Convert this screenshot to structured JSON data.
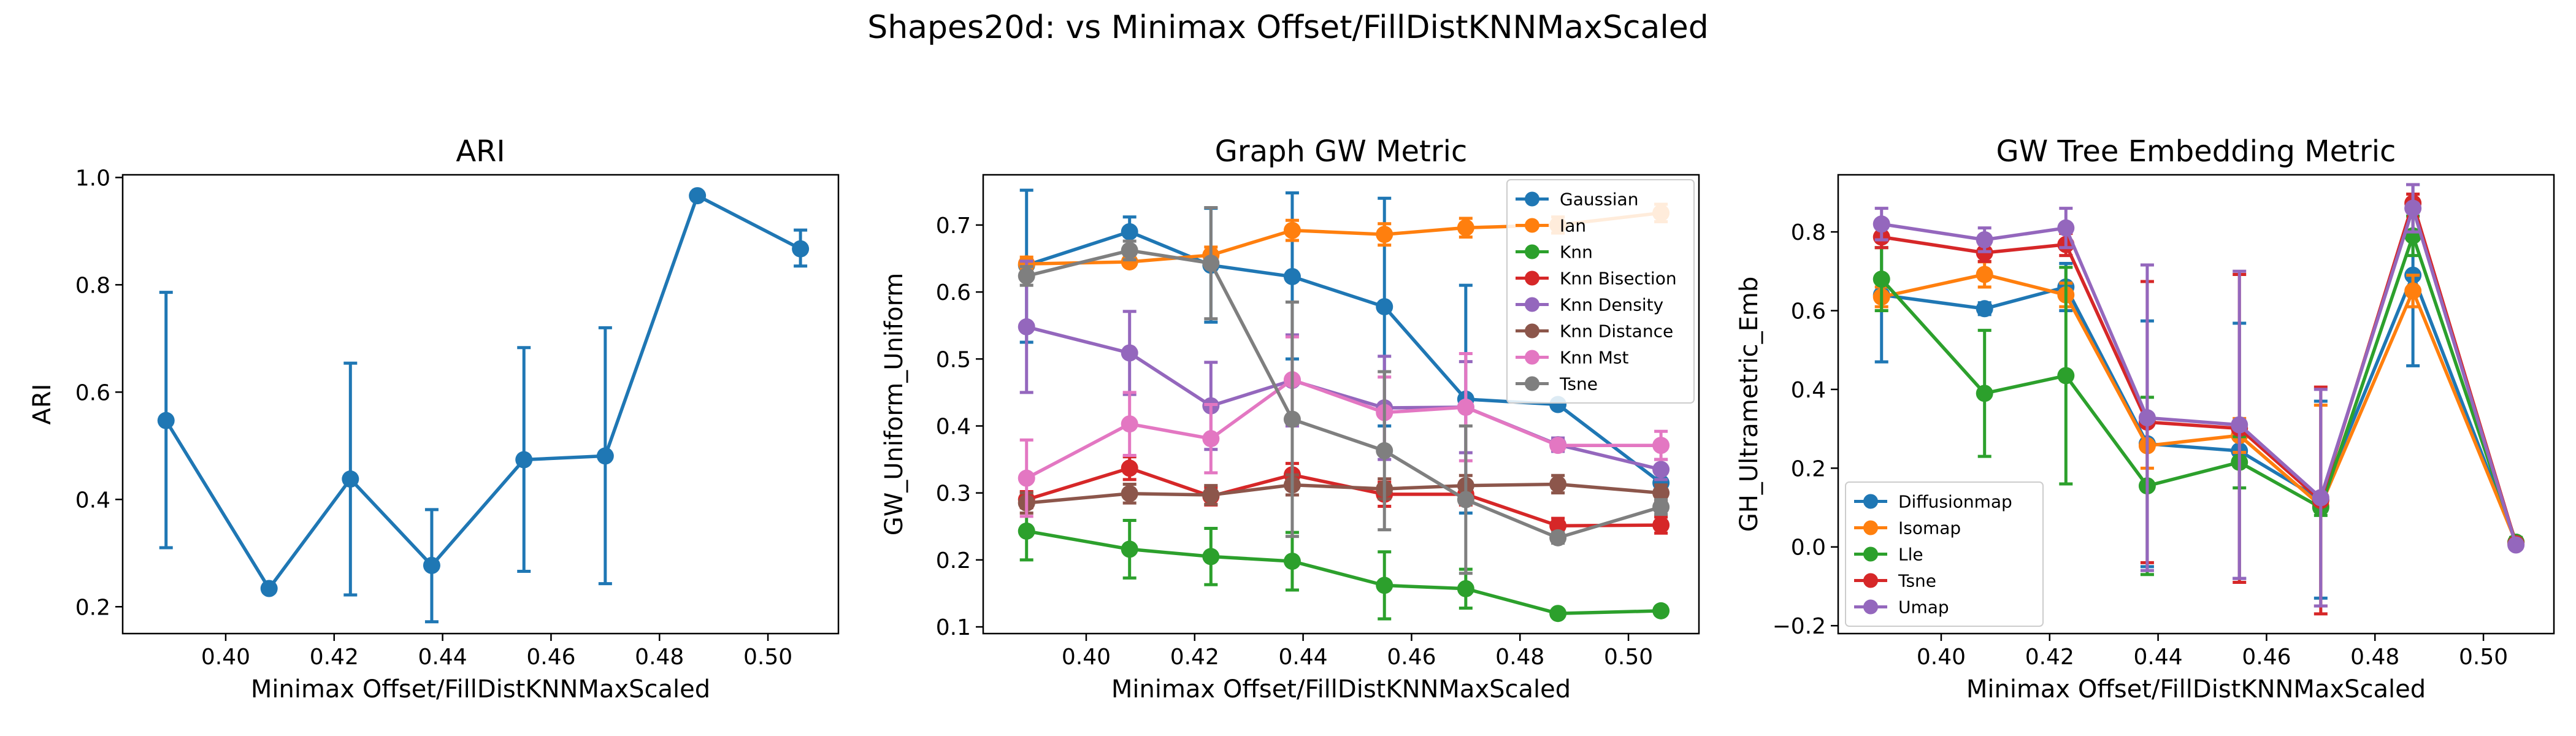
{
  "figure": {
    "suptitle": "Shapes20d: vs Minimax Offset/FillDistKNNMaxScaled"
  },
  "chart_data": [
    {
      "type": "line",
      "title": "ARI",
      "xlabel": "Minimax Offset/FillDistKNNMaxScaled",
      "ylabel": "ARI",
      "xlim": [
        0.381,
        0.513
      ],
      "ylim": [
        0.15,
        1.005
      ],
      "xticks": [
        0.4,
        0.42,
        0.44,
        0.46,
        0.48,
        0.5
      ],
      "xtick_labels": [
        "0.40",
        "0.42",
        "0.44",
        "0.46",
        "0.48",
        "0.50"
      ],
      "yticks": [
        0.2,
        0.4,
        0.6,
        0.8,
        1.0
      ],
      "ytick_labels": [
        "0.2",
        "0.4",
        "0.6",
        "0.8",
        "1.0"
      ],
      "legend": null,
      "x": [
        0.389,
        0.408,
        0.423,
        0.438,
        0.455,
        0.47,
        0.487,
        0.506
      ],
      "series": [
        {
          "color": "#1f77b4",
          "values": [
            0.547,
            0.234,
            0.438,
            0.277,
            0.474,
            0.481,
            0.966,
            0.867
          ],
          "err_low": [
            0.31,
            0.234,
            0.222,
            0.172,
            0.266,
            0.243,
            0.966,
            0.835
          ],
          "err_high": [
            0.786,
            0.234,
            0.654,
            0.381,
            0.683,
            0.72,
            0.966,
            0.902
          ]
        }
      ]
    },
    {
      "type": "line",
      "title": "Graph GW Metric",
      "xlabel": "Minimax Offset/FillDistKNNMaxScaled",
      "ylabel": "GW_Uniform_Uniform",
      "xlim": [
        0.381,
        0.513
      ],
      "ylim": [
        0.09,
        0.775
      ],
      "xticks": [
        0.4,
        0.42,
        0.44,
        0.46,
        0.48,
        0.5
      ],
      "xtick_labels": [
        "0.40",
        "0.42",
        "0.44",
        "0.46",
        "0.48",
        "0.50"
      ],
      "yticks": [
        0.1,
        0.2,
        0.3,
        0.4,
        0.5,
        0.6,
        0.7
      ],
      "ytick_labels": [
        "0.1",
        "0.2",
        "0.3",
        "0.4",
        "0.5",
        "0.6",
        "0.7"
      ],
      "legend": "top-right",
      "x": [
        0.389,
        0.408,
        0.423,
        0.438,
        0.455,
        0.47,
        0.487,
        0.506
      ],
      "series": [
        {
          "name": "Gaussian",
          "color": "#1f77b4",
          "values": [
            0.64,
            0.69,
            0.64,
            0.623,
            0.578,
            0.44,
            0.432,
            0.315
          ],
          "err_low": [
            0.525,
            0.668,
            0.555,
            0.5,
            0.4,
            0.27,
            0.432,
            0.295
          ],
          "err_high": [
            0.752,
            0.712,
            0.725,
            0.748,
            0.74,
            0.61,
            0.432,
            0.335
          ]
        },
        {
          "name": "Ian",
          "color": "#ff7f0e",
          "values": [
            0.642,
            0.645,
            0.655,
            0.692,
            0.686,
            0.696,
            0.7,
            0.718
          ],
          "err_low": [
            0.632,
            0.64,
            0.643,
            0.677,
            0.67,
            0.682,
            0.688,
            0.705
          ],
          "err_high": [
            0.652,
            0.65,
            0.667,
            0.707,
            0.702,
            0.71,
            0.712,
            0.731
          ]
        },
        {
          "name": "Knn",
          "color": "#2ca02c",
          "values": [
            0.243,
            0.216,
            0.205,
            0.198,
            0.162,
            0.157,
            0.12,
            0.124
          ],
          "err_low": [
            0.2,
            0.173,
            0.163,
            0.155,
            0.112,
            0.128,
            0.116,
            0.118
          ],
          "err_high": [
            0.286,
            0.259,
            0.247,
            0.241,
            0.212,
            0.186,
            0.124,
            0.13
          ]
        },
        {
          "name": "Knn Bisection",
          "color": "#d62728",
          "values": [
            0.29,
            0.337,
            0.295,
            0.327,
            0.298,
            0.298,
            0.251,
            0.252
          ],
          "err_low": [
            0.278,
            0.32,
            0.282,
            0.31,
            0.28,
            0.282,
            0.24,
            0.24
          ],
          "err_high": [
            0.302,
            0.354,
            0.308,
            0.344,
            0.316,
            0.314,
            0.262,
            0.264
          ]
        },
        {
          "name": "Knn Density",
          "color": "#9467bd",
          "values": [
            0.548,
            0.509,
            0.43,
            0.468,
            0.427,
            0.428,
            0.372,
            0.335
          ],
          "err_low": [
            0.45,
            0.447,
            0.365,
            0.4,
            0.35,
            0.36,
            0.362,
            0.32
          ],
          "err_high": [
            0.646,
            0.571,
            0.495,
            0.536,
            0.504,
            0.496,
            0.382,
            0.35
          ]
        },
        {
          "name": "Knn Distance",
          "color": "#8c564b",
          "values": [
            0.285,
            0.299,
            0.297,
            0.312,
            0.306,
            0.311,
            0.313,
            0.3
          ],
          "err_low": [
            0.27,
            0.285,
            0.283,
            0.297,
            0.291,
            0.296,
            0.3,
            0.288
          ],
          "err_high": [
            0.3,
            0.313,
            0.311,
            0.327,
            0.321,
            0.326,
            0.326,
            0.312
          ]
        },
        {
          "name": "Knn Mst",
          "color": "#e377c2",
          "values": [
            0.322,
            0.403,
            0.381,
            0.469,
            0.42,
            0.428,
            0.371,
            0.371
          ],
          "err_low": [
            0.265,
            0.356,
            0.33,
            0.405,
            0.367,
            0.348,
            0.365,
            0.35
          ],
          "err_high": [
            0.379,
            0.45,
            0.432,
            0.533,
            0.473,
            0.508,
            0.377,
            0.392
          ]
        },
        {
          "name": "Tsne",
          "color": "#7f7f7f",
          "values": [
            0.624,
            0.662,
            0.643,
            0.41,
            0.363,
            0.29,
            0.233,
            0.279
          ],
          "err_low": [
            0.61,
            0.648,
            0.56,
            0.235,
            0.245,
            0.18,
            0.225,
            0.268
          ],
          "err_high": [
            0.638,
            0.676,
            0.726,
            0.585,
            0.481,
            0.4,
            0.241,
            0.29
          ]
        }
      ]
    },
    {
      "type": "line",
      "title": "GW Tree Embedding Metric",
      "xlabel": "Minimax Offset/FillDistKNNMaxScaled",
      "ylabel": "GH_Ultrametric_Emb",
      "xlim": [
        0.381,
        0.513
      ],
      "ylim": [
        -0.22,
        0.945
      ],
      "xticks": [
        0.4,
        0.42,
        0.44,
        0.46,
        0.48,
        0.5
      ],
      "xtick_labels": [
        "0.40",
        "0.42",
        "0.44",
        "0.46",
        "0.48",
        "0.50"
      ],
      "yticks": [
        -0.2,
        0.0,
        0.2,
        0.4,
        0.6,
        0.8
      ],
      "ytick_labels": [
        "−0.2",
        "0.0",
        "0.2",
        "0.4",
        "0.6",
        "0.8"
      ],
      "legend": "bottom-left",
      "x": [
        0.389,
        0.408,
        0.423,
        0.438,
        0.455,
        0.47,
        0.487,
        0.506
      ],
      "series": [
        {
          "name": "Diffusionmap",
          "color": "#1f77b4",
          "values": [
            0.64,
            0.605,
            0.66,
            0.262,
            0.244,
            0.12,
            0.69,
            0.012
          ],
          "err_low": [
            0.47,
            0.59,
            0.6,
            -0.05,
            -0.08,
            -0.13,
            0.46,
            0.0
          ],
          "err_high": [
            0.81,
            0.62,
            0.72,
            0.574,
            0.568,
            0.37,
            0.92,
            0.024
          ]
        },
        {
          "name": "Isomap",
          "color": "#ff7f0e",
          "values": [
            0.635,
            0.692,
            0.64,
            0.257,
            0.283,
            0.105,
            0.65,
            0.012
          ],
          "err_low": [
            0.61,
            0.66,
            0.61,
            0.2,
            0.24,
            -0.15,
            0.61,
            0.0
          ],
          "err_high": [
            0.66,
            0.724,
            0.67,
            0.314,
            0.326,
            0.36,
            0.69,
            0.024
          ]
        },
        {
          "name": "Lle",
          "color": "#2ca02c",
          "values": [
            0.68,
            0.39,
            0.435,
            0.155,
            0.215,
            0.1,
            0.79,
            0.012
          ],
          "err_low": [
            0.6,
            0.23,
            0.16,
            -0.07,
            0.15,
            0.08,
            0.74,
            0.0
          ],
          "err_high": [
            0.76,
            0.55,
            0.71,
            0.38,
            0.28,
            0.12,
            0.84,
            0.024
          ]
        },
        {
          "name": "Tsne",
          "color": "#d62728",
          "values": [
            0.787,
            0.747,
            0.768,
            0.317,
            0.301,
            0.118,
            0.873,
            0.008
          ],
          "err_low": [
            0.76,
            0.725,
            0.74,
            -0.04,
            -0.09,
            -0.17,
            0.85,
            0.0
          ],
          "err_high": [
            0.814,
            0.769,
            0.796,
            0.674,
            0.692,
            0.406,
            0.896,
            0.016
          ]
        },
        {
          "name": "Umap",
          "color": "#9467bd",
          "values": [
            0.82,
            0.78,
            0.81,
            0.328,
            0.31,
            0.125,
            0.86,
            0.005
          ],
          "err_low": [
            0.78,
            0.75,
            0.76,
            -0.06,
            -0.08,
            -0.15,
            0.8,
            0.0
          ],
          "err_high": [
            0.86,
            0.81,
            0.86,
            0.716,
            0.7,
            0.4,
            0.92,
            0.01
          ]
        }
      ]
    }
  ]
}
